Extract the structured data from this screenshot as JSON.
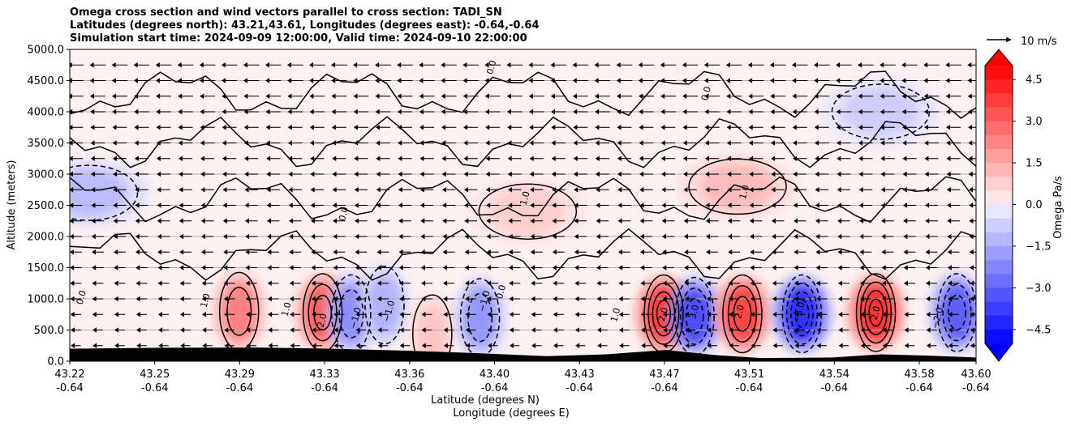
{
  "title_lines": [
    "Omega cross section and wind vectors parallel to cross section: TADI_SN",
    "Latitudes (degrees north): 43.21,43.61, Longitudes (degrees east): -0.64,-0.64",
    "Simulation start time: 2024-09-09 12:00:00, Valid time: 2024-09-10 22:00:00"
  ],
  "chart_data": {
    "type": "heatmap",
    "title": "Omega cross section and wind vectors parallel to cross section: TADI_SN",
    "xlabel_line1": "Latitude (degrees N)",
    "xlabel_line2": "Longitude (degrees E)",
    "ylabel": "Altitude (meters)",
    "xlim": [
      43.22,
      43.6
    ],
    "ylim": [
      0.0,
      5000.0
    ],
    "x_ticks": [
      {
        "lat": "43.22",
        "lon": "-0.64"
      },
      {
        "lat": "43.25",
        "lon": "-0.64"
      },
      {
        "lat": "43.29",
        "lon": "-0.64"
      },
      {
        "lat": "43.33",
        "lon": "-0.64"
      },
      {
        "lat": "43.36",
        "lon": "-0.64"
      },
      {
        "lat": "43.40",
        "lon": "-0.64"
      },
      {
        "lat": "43.43",
        "lon": "-0.64"
      },
      {
        "lat": "43.47",
        "lon": "-0.64"
      },
      {
        "lat": "43.51",
        "lon": "-0.64"
      },
      {
        "lat": "43.54",
        "lon": "-0.64"
      },
      {
        "lat": "43.58",
        "lon": "-0.64"
      },
      {
        "lat": "43.60",
        "lon": "-0.64"
      }
    ],
    "y_ticks": [
      "0.0",
      "500.0",
      "1000.0",
      "1500.0",
      "2000.0",
      "2500.0",
      "3000.0",
      "3500.0",
      "4000.0",
      "4500.0",
      "5000.0"
    ],
    "grid": "horizontal",
    "colorbar": {
      "label": "Omega Pa/s",
      "range": [
        -5.0,
        5.0
      ],
      "extend": "both",
      "ticks": [
        "4.5",
        "3.0",
        "1.5",
        "0.0",
        "−1.5",
        "−3.0",
        "−4.5"
      ]
    },
    "quiver_key": "10 m/s",
    "wind_direction": "southward (toward lower latitude)",
    "contour_labels": [
      "0.0",
      "1.0",
      "−1.0",
      "2.0",
      "−2.0",
      "3.0",
      "−3.0"
    ],
    "features": [
      {
        "name": "updraft",
        "lat": 43.291,
        "alt": 800,
        "omega": 2.5
      },
      {
        "name": "updraft",
        "lat": 43.326,
        "alt": 780,
        "omega": 3.2
      },
      {
        "name": "downdraft",
        "lat": 43.338,
        "alt": 760,
        "omega": -2.2
      },
      {
        "name": "downdraft",
        "lat": 43.352,
        "alt": 900,
        "omega": -1.4
      },
      {
        "name": "updraft",
        "lat": 43.372,
        "alt": 440,
        "omega": 1.0
      },
      {
        "name": "downdraft",
        "lat": 43.392,
        "alt": 700,
        "omega": -2.0
      },
      {
        "name": "updraft",
        "lat": 43.469,
        "alt": 760,
        "omega": 4.0
      },
      {
        "name": "downdraft",
        "lat": 43.482,
        "alt": 720,
        "omega": -3.6
      },
      {
        "name": "updraft",
        "lat": 43.502,
        "alt": 760,
        "omega": 3.8
      },
      {
        "name": "downdraft",
        "lat": 43.527,
        "alt": 760,
        "omega": -4.2
      },
      {
        "name": "updraft",
        "lat": 43.558,
        "alt": 780,
        "omega": 4.2
      },
      {
        "name": "downdraft",
        "lat": 43.592,
        "alt": 780,
        "omega": -3.2
      },
      {
        "name": "updraft",
        "lat": 43.412,
        "alt": 2400,
        "omega": 0.8
      },
      {
        "name": "updraft",
        "lat": 43.5,
        "alt": 2800,
        "omega": 1.2
      },
      {
        "name": "downdraft",
        "lat": 43.228,
        "alt": 2700,
        "omega": -1.2
      },
      {
        "name": "downdraft",
        "lat": 43.56,
        "alt": 4000,
        "omega": -0.8
      }
    ],
    "terrain": [
      {
        "lat": 43.22,
        "alt": 200
      },
      {
        "lat": 43.26,
        "alt": 215
      },
      {
        "lat": 43.3,
        "alt": 220
      },
      {
        "lat": 43.33,
        "alt": 200
      },
      {
        "lat": 43.36,
        "alt": 170
      },
      {
        "lat": 43.39,
        "alt": 130
      },
      {
        "lat": 43.42,
        "alt": 80
      },
      {
        "lat": 43.445,
        "alt": 110
      },
      {
        "lat": 43.47,
        "alt": 180
      },
      {
        "lat": 43.49,
        "alt": 100
      },
      {
        "lat": 43.51,
        "alt": 50
      },
      {
        "lat": 43.54,
        "alt": 60
      },
      {
        "lat": 43.56,
        "alt": 110
      },
      {
        "lat": 43.58,
        "alt": 90
      },
      {
        "lat": 43.6,
        "alt": 60
      }
    ]
  }
}
